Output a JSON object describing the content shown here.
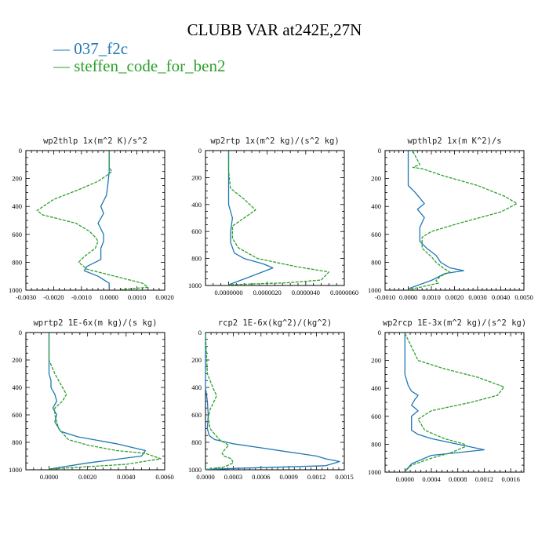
{
  "title": "CLUBB VAR at242E,27N",
  "legend": [
    {
      "dash": "—",
      "label": "037_f2c",
      "color": "#1f77b4"
    },
    {
      "dash": "—",
      "label": "steffen_code_for_ben2",
      "color": "#2ca02c"
    }
  ],
  "colors": {
    "series1": "#1f77b4",
    "series2": "#2ca02c"
  },
  "chart_data": [
    {
      "type": "line",
      "title": "wp2thlp  1x(m^2 K)/s^2",
      "xlim": [
        -0.003,
        0.002
      ],
      "ylim": [
        1000,
        0
      ],
      "xticks": [
        "-0.0030",
        "-0.0020",
        "-0.0010",
        "0.0000",
        "0.0010",
        "0.0020"
      ],
      "xtickvals": [
        -0.003,
        -0.002,
        -0.001,
        0,
        0.001,
        0.002
      ],
      "yticks": [
        "0",
        "200",
        "400",
        "600",
        "800",
        "1000"
      ],
      "series": [
        {
          "name": "037_f2c",
          "x": [
            0,
            0,
            -5e-05,
            -0.0001,
            -0.0003,
            -0.0002,
            -0.0004,
            -0.0002,
            -0.0002,
            -0.0003,
            -0.0003,
            -0.0005,
            -0.0008,
            -0.0009,
            -0.0004,
            0.0,
            0.0
          ],
          "y": [
            5,
            150,
            250,
            320,
            400,
            450,
            520,
            600,
            650,
            700,
            780,
            800,
            830,
            860,
            900,
            950,
            990
          ]
        },
        {
          "name": "steffen_code_for_ben2",
          "x": [
            0,
            0,
            0.0001,
            -0.0001,
            -0.0004,
            -0.0011,
            -0.002,
            -0.0026,
            -0.0024,
            -0.0012,
            -0.0007,
            -0.0005,
            -0.0004,
            -0.0005,
            -0.0009,
            -0.0011,
            -0.0008,
            0.0002,
            0.0012,
            0.0014,
            0.0004
          ],
          "y": [
            5,
            120,
            150,
            180,
            220,
            280,
            350,
            430,
            460,
            520,
            580,
            620,
            650,
            700,
            760,
            800,
            850,
            900,
            950,
            980,
            995
          ]
        }
      ]
    },
    {
      "type": "line",
      "title": "wp2rtp  1x(m^2 kg)/(s^2 kg)",
      "xlim": [
        -1.2e-06,
        6e-06
      ],
      "ylim": [
        1000,
        0
      ],
      "xticks": [
        "0.0000000",
        "0.0000020",
        "0.0000040",
        "0.0000060"
      ],
      "xtickvals": [
        0,
        2e-06,
        4e-06,
        6e-06
      ],
      "yticks": [
        "0",
        "200",
        "400",
        "600",
        "800",
        "1000"
      ],
      "series": [
        {
          "name": "037_f2c",
          "x": [
            0,
            0,
            0,
            2e-07,
            1e-07,
            1e-07,
            2e-07,
            3e-07,
            8e-07,
            1.8e-06,
            2.3e-06,
            1.2e-06,
            0.0
          ],
          "y": [
            5,
            200,
            400,
            500,
            600,
            680,
            720,
            760,
            800,
            840,
            870,
            930,
            995
          ]
        },
        {
          "name": "steffen_code_for_ben2",
          "x": [
            0,
            0,
            1e-07,
            8e-07,
            1.4e-06,
            6e-07,
            2e-07,
            2e-07,
            5e-07,
            1.5e-06,
            3.5e-06,
            5.2e-06,
            4.8e-06,
            3e-06,
            0.0
          ],
          "y": [
            5,
            150,
            280,
            360,
            440,
            520,
            560,
            650,
            720,
            800,
            860,
            900,
            960,
            980,
            995
          ]
        }
      ]
    },
    {
      "type": "line",
      "title": "wpthlp2  1x(m K^2)/s",
      "xlim": [
        -0.001,
        0.005
      ],
      "ylim": [
        1000,
        0
      ],
      "xticks": [
        "-0.0010",
        "0.0000",
        "0.0010",
        "0.0020",
        "0.0030",
        "0.0040",
        "0.0050"
      ],
      "xtickvals": [
        -0.001,
        0,
        0.001,
        0.002,
        0.003,
        0.004,
        0.005
      ],
      "yticks": [
        "0",
        "200",
        "400",
        "600",
        "800",
        "1000"
      ],
      "series": [
        {
          "name": "037_f2c",
          "x": [
            0,
            0,
            0.0003,
            0.0007,
            0.0004,
            0.0007,
            0.0005,
            0.0005,
            0.0008,
            0.0012,
            0.0014,
            0.0018,
            0.0024,
            0.0016,
            0.001,
            0.0
          ],
          "y": [
            5,
            250,
            300,
            380,
            420,
            480,
            550,
            650,
            700,
            750,
            800,
            840,
            860,
            880,
            930,
            990
          ]
        },
        {
          "name": "steffen_code_for_ben2",
          "x": [
            0.0002,
            0.0005,
            0.0002,
            0.0006,
            0.0015,
            0.003,
            0.0042,
            0.0047,
            0.004,
            0.0022,
            0.001,
            0.0006,
            0.0006,
            0.001,
            0.0012,
            0.0015,
            0.0018,
            0.0014,
            0.0012,
            0.0013,
            0.001,
            0.0005,
            0.0
          ],
          "y": [
            5,
            100,
            120,
            130,
            180,
            250,
            330,
            380,
            440,
            520,
            580,
            620,
            700,
            760,
            800,
            840,
            870,
            900,
            930,
            950,
            960,
            980,
            995
          ]
        }
      ]
    },
    {
      "type": "line",
      "title": "wprtp2  1E-6x(m kg)/(s kg)",
      "xlim": [
        -0.0012,
        0.006
      ],
      "ylim": [
        1000,
        0
      ],
      "xticks": [
        "0.0000",
        "0.0020",
        "0.0040",
        "0.0060"
      ],
      "xtickvals": [
        0,
        0.002,
        0.004,
        0.006
      ],
      "yticks": [
        "0",
        "200",
        "400",
        "600",
        "800",
        "1000"
      ],
      "series": [
        {
          "name": "037_f2c",
          "x": [
            0,
            0,
            0.0001,
            0.0001,
            0.0003,
            0.0004,
            0.0002,
            0.0004,
            0.0003,
            0.0006,
            0.0015,
            0.0035,
            0.005,
            0.0048,
            0.002,
            0.0
          ],
          "y": [
            5,
            300,
            350,
            400,
            450,
            500,
            550,
            600,
            650,
            720,
            760,
            810,
            860,
            900,
            950,
            995
          ]
        },
        {
          "name": "steffen_code_for_ben2",
          "x": [
            0,
            0,
            0.0003,
            0.0007,
            0.0009,
            0.0007,
            0.0003,
            0.0003,
            0.0005,
            0.001,
            0.002,
            0.0035,
            0.005,
            0.0058,
            0.004,
            0.0
          ],
          "y": [
            5,
            200,
            300,
            400,
            450,
            500,
            550,
            600,
            700,
            780,
            820,
            860,
            880,
            920,
            960,
            995
          ]
        }
      ]
    },
    {
      "type": "line",
      "title": "rcp2  1E-6x(kg^2)/(kg^2)",
      "xlim": [
        0,
        0.0015
      ],
      "ylim": [
        1000,
        0
      ],
      "xticks": [
        "0.0000",
        "0.0003",
        "0.0006",
        "0.0009",
        "0.0012",
        "0.0015"
      ],
      "xtickvals": [
        0,
        0.0003,
        0.0006,
        0.0009,
        0.0012,
        0.0015
      ],
      "yticks": [
        "0",
        "200",
        "400",
        "600",
        "800",
        "1000"
      ],
      "series": [
        {
          "name": "037_f2c",
          "x": [
            0,
            0,
            2e-05,
            3e-05,
            2e-05,
            4e-05,
            0.0001,
            0.0003,
            0.0006,
            0.0009,
            0.001,
            0.0012,
            0.0013,
            0.00145,
            0.0013,
            0.0003,
            0.0
          ],
          "y": [
            5,
            400,
            500,
            600,
            700,
            750,
            780,
            810,
            840,
            870,
            880,
            900,
            920,
            940,
            970,
            990,
            998
          ]
        },
        {
          "name": "steffen_code_for_ben2",
          "x": [
            0,
            2e-05,
            8e-05,
            0.00012,
            8e-05,
            5e-05,
            3e-05,
            5e-05,
            0.00015,
            0.00025,
            0.0002,
            0.00018,
            0.0002,
            0.00028,
            0.0003,
            0.0002,
            0.0
          ],
          "y": [
            5,
            300,
            400,
            460,
            520,
            560,
            620,
            700,
            780,
            820,
            860,
            880,
            900,
            920,
            950,
            980,
            998
          ]
        }
      ]
    },
    {
      "type": "line",
      "title": "wp2rcp  1E-3x(m^2 kg)/(s^2 kg)",
      "xlim": [
        -0.0003,
        0.0018
      ],
      "ylim": [
        1000,
        0
      ],
      "xticks": [
        "0.0000",
        "0.0004",
        "0.0008",
        "0.0012",
        "0.0016"
      ],
      "xtickvals": [
        0,
        0.0004,
        0.0008,
        0.0012,
        0.0016
      ],
      "yticks": [
        "0",
        "200",
        "400",
        "600",
        "800",
        "1000"
      ],
      "series": [
        {
          "name": "037_f2c",
          "x": [
            0,
            0,
            5e-05,
            0.0001,
            0.0002,
            0.00015,
            0.0001,
            0.0002,
            0.0001,
            0.0001,
            0.0002,
            0.0004,
            0.0008,
            0.0012,
            0.0008,
            0.0004,
            0.0001,
            0.0
          ],
          "y": [
            5,
            300,
            380,
            420,
            450,
            480,
            520,
            560,
            600,
            700,
            730,
            760,
            800,
            840,
            860,
            880,
            940,
            995
          ]
        },
        {
          "name": "steffen_code_for_ben2",
          "x": [
            0,
            0.0002,
            0.0006,
            0.0011,
            0.0015,
            0.0014,
            0.001,
            0.0004,
            0.0002,
            0.0003,
            0.0006,
            0.0009,
            0.0009,
            0.0007,
            0.0004,
            0.0001,
            0.0
          ],
          "y": [
            5,
            200,
            260,
            320,
            390,
            450,
            500,
            560,
            620,
            700,
            760,
            800,
            820,
            860,
            900,
            950,
            995
          ]
        }
      ]
    }
  ]
}
